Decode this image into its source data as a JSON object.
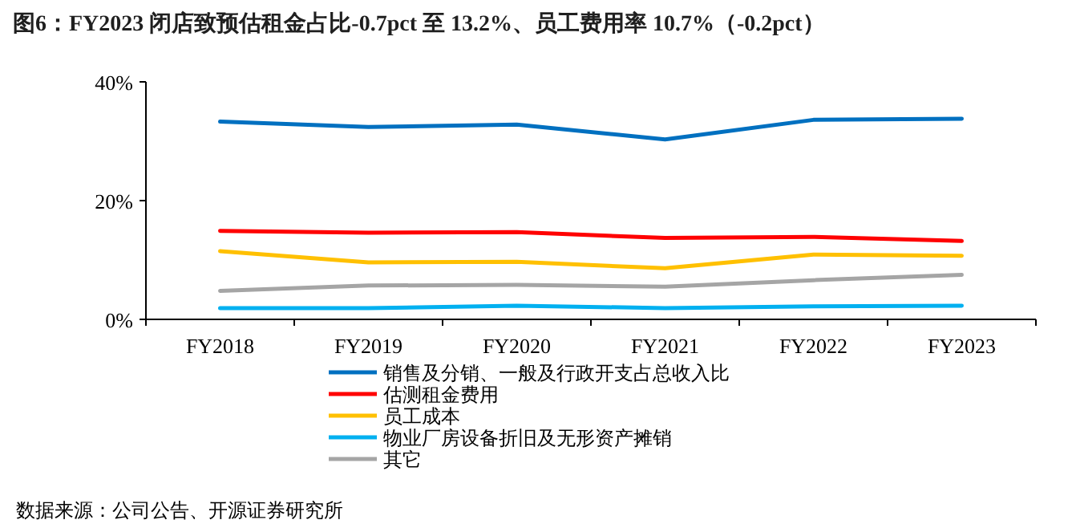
{
  "chart_data": {
    "type": "line",
    "title": "图6：FY2023 闭店致预估租金占比-0.7pct 至 13.2%、员工费用率 10.7%（-0.2pct）",
    "categories": [
      "FY2018",
      "FY2019",
      "FY2020",
      "FY2021",
      "FY2022",
      "FY2023"
    ],
    "series": [
      {
        "name": "销售及分销、一般及行政开支占总收入比",
        "color": "#0070c0",
        "values": [
          33.3,
          32.4,
          32.8,
          30.3,
          33.6,
          33.8
        ]
      },
      {
        "name": "估测租金费用",
        "color": "#ff0000",
        "values": [
          14.9,
          14.6,
          14.7,
          13.7,
          13.9,
          13.2
        ]
      },
      {
        "name": "员工成本",
        "color": "#ffc000",
        "values": [
          11.5,
          9.6,
          9.7,
          8.6,
          10.9,
          10.7
        ]
      },
      {
        "name": "物业厂房设备折旧及无形资产摊销",
        "color": "#00b0f0",
        "values": [
          1.9,
          1.9,
          2.3,
          1.9,
          2.2,
          2.3
        ]
      },
      {
        "name": "其它",
        "color": "#a5a5a5",
        "values": [
          4.8,
          5.7,
          5.8,
          5.5,
          6.6,
          7.5
        ]
      }
    ],
    "ylim": [
      0,
      40
    ],
    "yticks": [
      {
        "value": 0,
        "label": "0%"
      },
      {
        "value": 20,
        "label": "20%"
      },
      {
        "value": 40,
        "label": "40%"
      }
    ],
    "legend": "bottom",
    "grid": false,
    "marker": "none",
    "line_style": "solid",
    "annotations": [
      "数据来源：公司公告、开源证券研究所"
    ]
  }
}
